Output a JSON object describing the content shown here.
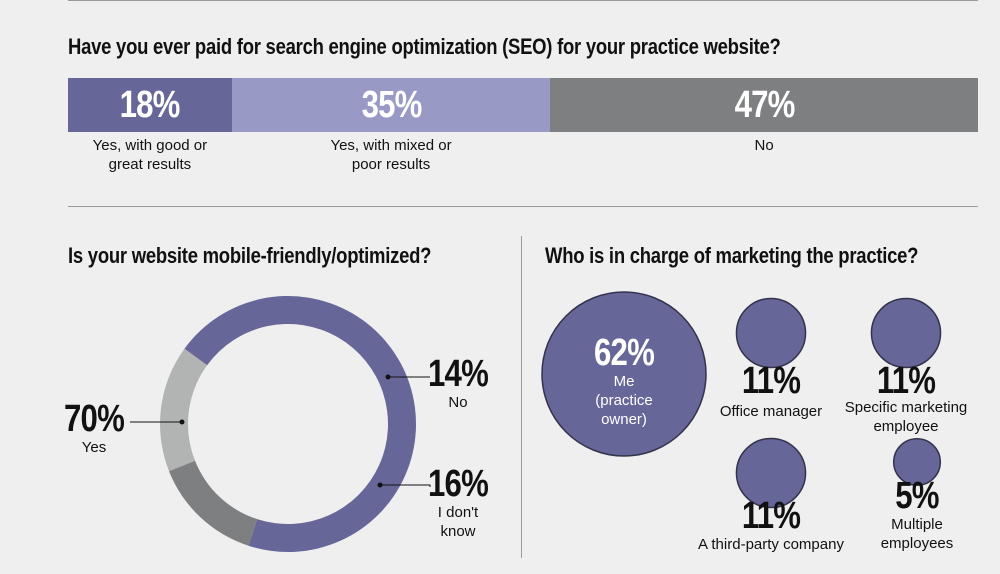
{
  "q1": {
    "title": "Have you ever paid for search engine optimization (SEO) for your practice website?"
  },
  "q2": {
    "title": "Is your website mobile-friendly/optimized?"
  },
  "q3": {
    "title": "Who is in charge of marketing the practice?"
  },
  "colors": {
    "dark_purple": "#666699",
    "light_purple": "#9999c6",
    "dark_gray": "#7e7f80",
    "light_gray": "#b2b3b3",
    "background": "#efefef"
  },
  "chart_data": [
    {
      "type": "bar",
      "stacked": true,
      "orientation": "horizontal",
      "title": "Have you ever paid for search engine optimization (SEO) for your practice website?",
      "categories": [
        "Yes, with good or great results",
        "Yes, with mixed or poor results",
        "No"
      ],
      "values": [
        18,
        35,
        47
      ],
      "labels": [
        "18%",
        "35%",
        "47%"
      ],
      "label_lines": [
        [
          "Yes, with good or",
          "great results"
        ],
        [
          "Yes, with mixed or",
          "poor results"
        ],
        [
          "No"
        ]
      ],
      "colors": [
        "#666699",
        "#9999c6",
        "#7e7f80"
      ]
    },
    {
      "type": "pie",
      "donut": true,
      "title": "Is your website mobile-friendly/optimized?",
      "categories": [
        "Yes",
        "No",
        "I don't know"
      ],
      "values": [
        70,
        14,
        16
      ],
      "labels": [
        "70%",
        "14%",
        "16%"
      ],
      "label_lines": [
        [
          "Yes"
        ],
        [
          "No"
        ],
        [
          "I don't",
          "know"
        ]
      ],
      "colors": [
        "#666699",
        "#7e7f80",
        "#b2b3b3"
      ]
    },
    {
      "type": "scatter",
      "bubble": true,
      "title": "Who is in charge of marketing the practice?",
      "categories": [
        "Me (practice owner)",
        "Office manager",
        "Specific marketing employee",
        "A third-party company",
        "Multiple employees"
      ],
      "values": [
        62,
        11,
        11,
        11,
        5
      ],
      "labels": [
        "62%",
        "11%",
        "11%",
        "11%",
        "5%"
      ],
      "label_lines": [
        [
          "Me",
          "(practice",
          "owner)"
        ],
        [
          "Office manager"
        ],
        [
          "Specific marketing",
          "employee"
        ],
        [
          "A third-party company"
        ],
        [
          "Multiple",
          "employees"
        ]
      ],
      "colors": [
        "#666699",
        "#666699",
        "#666699",
        "#666699",
        "#666699"
      ]
    }
  ]
}
